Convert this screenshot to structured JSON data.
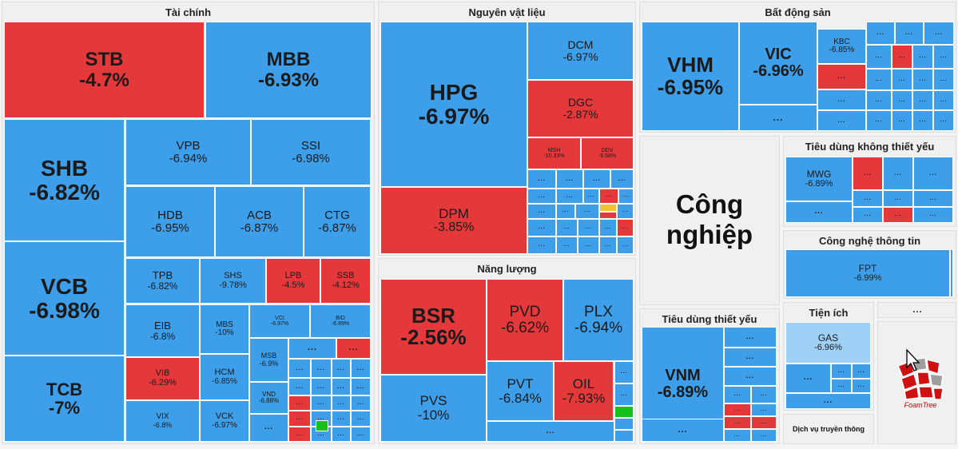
{
  "colors": {
    "down": "#3d9ee9",
    "deep_down": "#e5383b",
    "light_down": "#9fd0f5",
    "up": "#17c11a",
    "flat": "#f2c230",
    "panel": "#f0f0f0"
  },
  "sectors": {
    "finance": "Tài chính",
    "materials": "Nguyên vật liệu",
    "real_estate": "Bất động sản",
    "energy": "Năng lượng",
    "industrials": "Công nghiệp",
    "consumer_disc": "Tiêu dùng không thiết yếu",
    "it": "Công nghệ thông tin",
    "consumer_staples": "Tiêu dùng thiết yếu",
    "utilities": "Tiện ích",
    "media": "Dịch vụ truyền thông"
  },
  "chart_data": {
    "type": "treemap",
    "title": "",
    "tiles": [
      {
        "sector": "finance",
        "ticker": "STB",
        "change": "-4.7%",
        "color": "deep_down"
      },
      {
        "sector": "finance",
        "ticker": "MBB",
        "change": "-6.93%",
        "color": "down"
      },
      {
        "sector": "finance",
        "ticker": "SHB",
        "change": "-6.82%",
        "color": "down"
      },
      {
        "sector": "finance",
        "ticker": "VPB",
        "change": "-6.94%",
        "color": "down"
      },
      {
        "sector": "finance",
        "ticker": "SSI",
        "change": "-6.98%",
        "color": "down"
      },
      {
        "sector": "finance",
        "ticker": "VCB",
        "change": "-6.98%",
        "color": "down"
      },
      {
        "sector": "finance",
        "ticker": "HDB",
        "change": "-6.95%",
        "color": "down"
      },
      {
        "sector": "finance",
        "ticker": "ACB",
        "change": "-6.87%",
        "color": "down"
      },
      {
        "sector": "finance",
        "ticker": "CTG",
        "change": "-6.87%",
        "color": "down"
      },
      {
        "sector": "finance",
        "ticker": "TCB",
        "change": "-7%",
        "color": "down"
      },
      {
        "sector": "finance",
        "ticker": "TPB",
        "change": "-6.82%",
        "color": "down"
      },
      {
        "sector": "finance",
        "ticker": "SHS",
        "change": "-9.78%",
        "color": "down"
      },
      {
        "sector": "finance",
        "ticker": "LPB",
        "change": "-4.5%",
        "color": "deep_down"
      },
      {
        "sector": "finance",
        "ticker": "SSB",
        "change": "-4.12%",
        "color": "deep_down"
      },
      {
        "sector": "finance",
        "ticker": "EIB",
        "change": "-6.8%",
        "color": "down"
      },
      {
        "sector": "finance",
        "ticker": "MBS",
        "change": "-10%",
        "color": "down"
      },
      {
        "sector": "finance",
        "ticker": "VCI",
        "change": "-6.97%",
        "color": "down"
      },
      {
        "sector": "finance",
        "ticker": "BID",
        "change": "-6.89%",
        "color": "down"
      },
      {
        "sector": "finance",
        "ticker": "MSB",
        "change": "-6.9%",
        "color": "down"
      },
      {
        "sector": "finance",
        "ticker": "VIB",
        "change": "-6.29%",
        "color": "deep_down"
      },
      {
        "sector": "finance",
        "ticker": "HCM",
        "change": "-6.85%",
        "color": "down"
      },
      {
        "sector": "finance",
        "ticker": "VND",
        "change": "-6.88%",
        "color": "down"
      },
      {
        "sector": "finance",
        "ticker": "VIX",
        "change": "-6.8%",
        "color": "down"
      },
      {
        "sector": "finance",
        "ticker": "VCK",
        "change": "-6.97%",
        "color": "down"
      },
      {
        "sector": "materials",
        "ticker": "HPG",
        "change": "-6.97%",
        "color": "down"
      },
      {
        "sector": "materials",
        "ticker": "DCM",
        "change": "-6.97%",
        "color": "down"
      },
      {
        "sector": "materials",
        "ticker": "DGC",
        "change": "-2.87%",
        "color": "deep_down"
      },
      {
        "sector": "materials",
        "ticker": "MSH",
        "change": "-10.33%",
        "color": "deep_down"
      },
      {
        "sector": "materials",
        "ticker": "DDV",
        "change": "-9.58%",
        "color": "deep_down"
      },
      {
        "sector": "materials",
        "ticker": "DPM",
        "change": "-3.85%",
        "color": "deep_down"
      },
      {
        "sector": "energy",
        "ticker": "BSR",
        "change": "-2.56%",
        "color": "deep_down"
      },
      {
        "sector": "energy",
        "ticker": "PVD",
        "change": "-6.62%",
        "color": "deep_down"
      },
      {
        "sector": "energy",
        "ticker": "PLX",
        "change": "-6.94%",
        "color": "down"
      },
      {
        "sector": "energy",
        "ticker": "PVS",
        "change": "-10%",
        "color": "down"
      },
      {
        "sector": "energy",
        "ticker": "PVT",
        "change": "-6.84%",
        "color": "down"
      },
      {
        "sector": "energy",
        "ticker": "OIL",
        "change": "-7.93%",
        "color": "deep_down"
      },
      {
        "sector": "real_estate",
        "ticker": "VHM",
        "change": "-6.95%",
        "color": "down"
      },
      {
        "sector": "real_estate",
        "ticker": "VIC",
        "change": "-6.96%",
        "color": "down"
      },
      {
        "sector": "real_estate",
        "ticker": "KBC",
        "change": "-6.85%",
        "color": "down"
      },
      {
        "sector": "consumer_disc",
        "ticker": "MWG",
        "change": "-6.89%",
        "color": "down"
      },
      {
        "sector": "it",
        "ticker": "FPT",
        "change": "-6.99%",
        "color": "down"
      },
      {
        "sector": "consumer_staples",
        "ticker": "VNM",
        "change": "-6.89%",
        "color": "down"
      },
      {
        "sector": "utilities",
        "ticker": "GAS",
        "change": "-6.96%",
        "color": "light_down"
      }
    ]
  },
  "more_label": "...",
  "branding": {
    "logo_text": "FoamTree"
  }
}
